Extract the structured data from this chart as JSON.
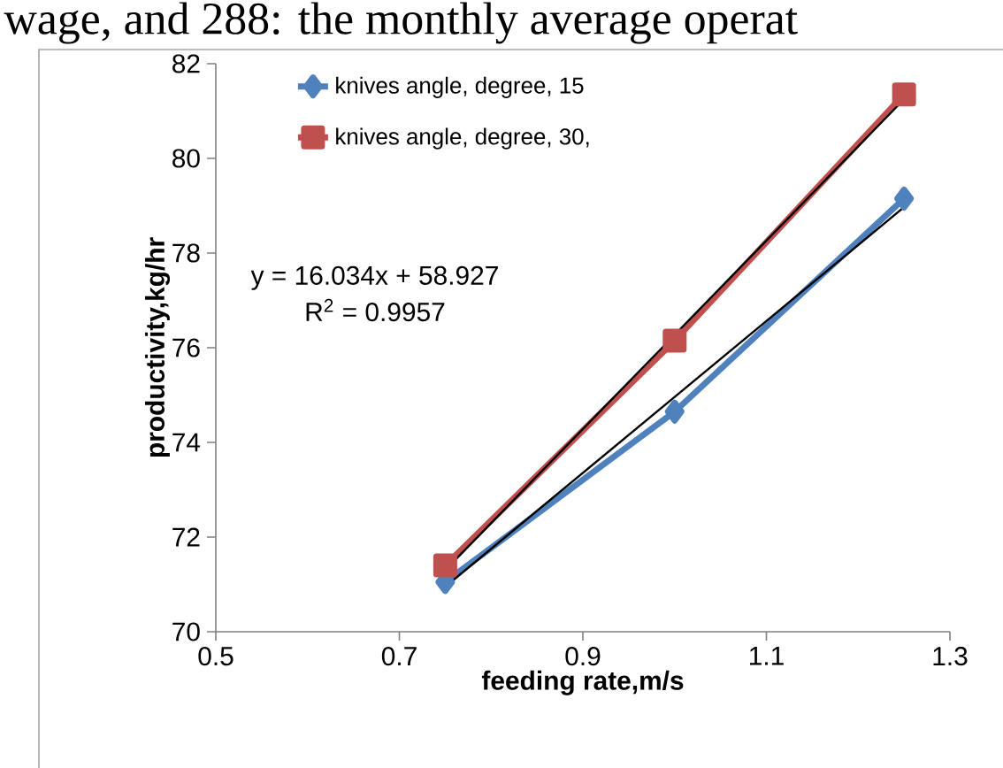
{
  "chart_data": {
    "type": "line",
    "xlabel": "feeding rate,m/s",
    "ylabel": "productivity,kg/hr",
    "x": [
      0.75,
      1.0,
      1.25
    ],
    "series": [
      {
        "name": "knives angle, degree, 15",
        "color": "#4f81bd",
        "marker": "diamond",
        "values": [
          71.05,
          74.65,
          79.15
        ]
      },
      {
        "name": "knives angle, degree, 30,",
        "color": "#c0504d",
        "marker": "square",
        "values": [
          71.4,
          76.15,
          81.35
        ]
      },
      {
        "type": "line",
        "color": "#000000",
        "marker": "none",
        "values": [
          70.95,
          74.96,
          78.97
        ]
      },
      {
        "type": "line",
        "color": "#000000",
        "marker": "none",
        "values": [
          71.3,
          76.27,
          81.25
        ]
      }
    ],
    "xlim": [
      0.5,
      1.3
    ],
    "xticks": [
      0.5,
      0.7,
      0.9,
      1.1,
      1.3
    ],
    "ylim": [
      70,
      82
    ],
    "yticks": [
      70,
      72,
      74,
      76,
      78,
      80,
      82
    ],
    "legend": "top left",
    "grid": false,
    "annotations": [
      "y = 16.034x + 58.927",
      "R$^{2}$ = 0.9957",
      "wage, and 288: the monthly average operat"
    ]
  }
}
